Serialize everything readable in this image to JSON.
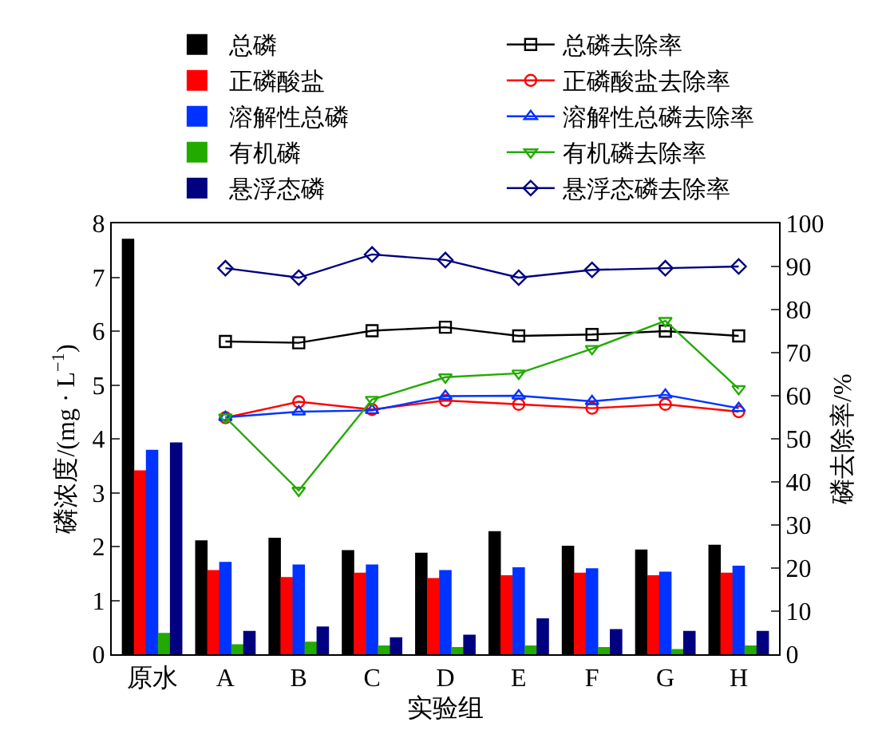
{
  "chart_data": {
    "type": "bar",
    "xlabel": "实验组",
    "ylabel": "磷浓度/(mg · L$^{−1}$)",
    "y2label": "磷去除率/%",
    "categories": [
      "原水",
      "A",
      "B",
      "C",
      "D",
      "E",
      "F",
      "G",
      "H"
    ],
    "series": [
      {
        "name": "总磷",
        "color": "#000000",
        "values": [
          7.7,
          2.1,
          2.15,
          1.92,
          1.87,
          2.27,
          2.0,
          1.93,
          2.02
        ]
      },
      {
        "name": "正磷酸盐",
        "color": "#ff0000",
        "values": [
          3.4,
          1.55,
          1.42,
          1.5,
          1.4,
          1.45,
          1.5,
          1.45,
          1.5
        ]
      },
      {
        "name": "溶解性总磷",
        "color": "#0033ff",
        "values": [
          3.78,
          1.7,
          1.65,
          1.65,
          1.55,
          1.6,
          1.58,
          1.52,
          1.63
        ]
      },
      {
        "name": "有机磷",
        "color": "#22aa00",
        "values": [
          0.38,
          0.17,
          0.22,
          0.15,
          0.12,
          0.15,
          0.12,
          0.08,
          0.15
        ]
      },
      {
        "name": "悬浮态磷",
        "color": "#000080",
        "values": [
          3.92,
          0.42,
          0.5,
          0.3,
          0.35,
          0.65,
          0.45,
          0.42,
          0.42
        ]
      },
      {
        "name": "总磷去除率",
        "type": "line",
        "axis": "y2",
        "marker": "square",
        "color": "#000000",
        "values": [
          null,
          72.6,
          72.3,
          75.1,
          75.9,
          73.9,
          74.2,
          75.0,
          73.9
        ]
      },
      {
        "name": "正磷酸盐去除率",
        "type": "line",
        "axis": "y2",
        "marker": "circle",
        "color": "#ff0000",
        "values": [
          null,
          54.9,
          58.6,
          56.8,
          58.9,
          58.0,
          57.1,
          58.0,
          56.3
        ]
      },
      {
        "name": "溶解性总磷去除率",
        "type": "line",
        "axis": "y2",
        "marker": "triangle",
        "color": "#0033ff",
        "values": [
          null,
          55.0,
          56.3,
          56.6,
          59.9,
          60.0,
          58.7,
          60.2,
          57.1
        ]
      },
      {
        "name": "有机磷去除率",
        "type": "line",
        "axis": "y2",
        "marker": "triangle-down",
        "color": "#22aa00",
        "values": [
          null,
          55.0,
          38.0,
          59.1,
          64.3,
          65.2,
          70.9,
          77.4,
          61.6
        ]
      },
      {
        "name": "悬浮态磷去除率",
        "type": "line",
        "axis": "y2",
        "marker": "diamond",
        "color": "#000080",
        "values": [
          null,
          89.6,
          87.4,
          92.8,
          91.5,
          87.4,
          89.2,
          89.6,
          90.0
        ]
      }
    ],
    "ylim": [
      0,
      8
    ],
    "yticks": [
      0,
      1,
      2,
      3,
      4,
      5,
      6,
      7,
      8
    ],
    "y2lim": [
      0,
      100
    ],
    "y2ticks": [
      0,
      10,
      20,
      30,
      40,
      50,
      60,
      70,
      80,
      90,
      100
    ],
    "legend": "top"
  }
}
